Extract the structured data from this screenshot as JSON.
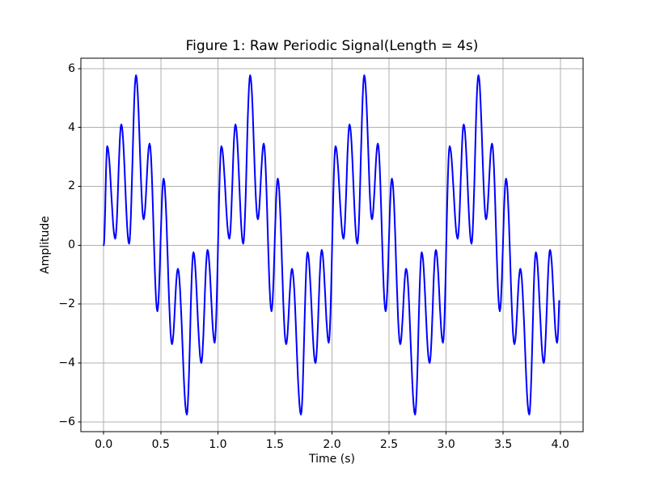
{
  "figure": {
    "background_color": "#ffffff",
    "title": "Figure 1: Raw Periodic Signal(Length = 4s)"
  },
  "chart_data": {
    "type": "line",
    "title": "Figure 1: Raw Periodic Signal(Length = 4s)",
    "xlabel": "Time (s)",
    "ylabel": "Amplitude",
    "x_tick_labels": [
      "0.0",
      "0.5",
      "1.0",
      "1.5",
      "2.0",
      "2.5",
      "3.0",
      "3.5",
      "4.0"
    ],
    "x_tick_values": [
      0.0,
      0.5,
      1.0,
      1.5,
      2.0,
      2.5,
      3.0,
      3.5,
      4.0
    ],
    "y_tick_labels": [
      "6",
      "4",
      "2",
      "0",
      "−2",
      "−4",
      "−6"
    ],
    "y_tick_values": [
      6,
      4,
      2,
      0,
      -2,
      -4,
      -6
    ],
    "xlim": [
      -0.2,
      4.2
    ],
    "ylim": [
      -6.33,
      6.35
    ],
    "grid": true,
    "grid_color": "#b0b0b0",
    "line_color": "#0000ff",
    "line_width": 2,
    "spine_color": "#000000",
    "period_s": 1.0,
    "num_periods": 4,
    "t_start": 0.0,
    "t_end": 3.99,
    "signal_start_point": [
      0.0,
      0.0
    ],
    "signal_end_point": [
      3.99,
      -1.85
    ],
    "waveform_keypoints_one_period": [
      [
        0.0,
        0.0
      ],
      [
        0.031,
        3.36
      ],
      [
        0.101,
        0.22
      ],
      [
        0.154,
        4.1
      ],
      [
        0.222,
        0.05
      ],
      [
        0.283,
        5.77
      ],
      [
        0.35,
        0.88
      ],
      [
        0.402,
        3.45
      ],
      [
        0.47,
        -2.24
      ],
      [
        0.525,
        2.26
      ],
      [
        0.598,
        -3.36
      ],
      [
        0.65,
        -0.8
      ],
      [
        0.728,
        -5.75
      ],
      [
        0.786,
        -0.24
      ],
      [
        0.855,
        -4.0
      ],
      [
        0.91,
        -0.16
      ],
      [
        0.972,
        -3.31
      ]
    ],
    "keypoints_note": "Local extrema (t seconds, amplitude) of one 1 s period; pattern repeats 4 times over 0-4 s, trace ends mid-rise at t=3.99 s"
  }
}
